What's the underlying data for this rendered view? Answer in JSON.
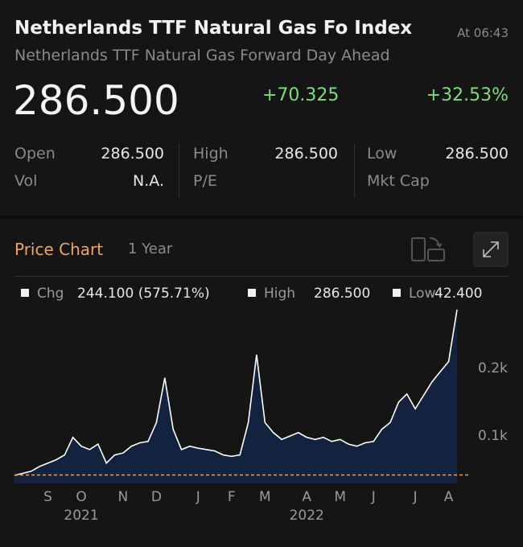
{
  "header": {
    "title": "Netherlands TTF Natural Gas Fo Index",
    "time": "At 06:43",
    "subtitle": "Netherlands TTF Natural Gas Forward Day Ahead",
    "price": "286.500",
    "change": "+70.325",
    "change_pct": "+32.53%"
  },
  "stats": [
    {
      "label": "Open",
      "value": "286.500"
    },
    {
      "label": "High",
      "value": "286.500"
    },
    {
      "label": "Low",
      "value": "286.500"
    },
    {
      "label": "Vol",
      "value": "N.A."
    },
    {
      "label": "P/E"
    },
    {
      "label": "Mkt Cap"
    }
  ],
  "chart_panel": {
    "title": "Price Chart",
    "range": "1 Year"
  },
  "chart_data": {
    "type": "area",
    "legend": [
      {
        "name": "Chg",
        "label": "244.100 (575.71%)"
      },
      {
        "name": "High",
        "value": 286.5,
        "label": "286.500"
      },
      {
        "name": "Low",
        "value": 42.4,
        "label": "42.400"
      }
    ],
    "categories": [
      null,
      null,
      null,
      null,
      "S",
      null,
      null,
      null,
      "O",
      null,
      null,
      null,
      null,
      "N",
      null,
      null,
      null,
      "D",
      null,
      null,
      null,
      null,
      "J",
      null,
      null,
      null,
      "F",
      null,
      null,
      null,
      "M",
      null,
      null,
      null,
      null,
      "A",
      null,
      null,
      null,
      "M",
      null,
      null,
      null,
      "J",
      null,
      null,
      null,
      null,
      "J",
      null,
      null,
      null,
      "A",
      null
    ],
    "year_categories": [
      null,
      null,
      null,
      null,
      null,
      null,
      null,
      null,
      "2021",
      null,
      null,
      null,
      null,
      null,
      null,
      null,
      null,
      null,
      null,
      null,
      null,
      null,
      null,
      null,
      null,
      null,
      null,
      null,
      null,
      null,
      null,
      null,
      null,
      null,
      null,
      "2022",
      null,
      null,
      null,
      null,
      null,
      null,
      null,
      null,
      null,
      null,
      null,
      null,
      null,
      null,
      null,
      null,
      null,
      null
    ],
    "values": [
      42,
      45,
      48,
      55,
      60,
      65,
      72,
      98,
      85,
      80,
      88,
      60,
      72,
      75,
      85,
      90,
      92,
      120,
      186,
      110,
      80,
      85,
      82,
      80,
      78,
      72,
      70,
      72,
      120,
      220,
      120,
      105,
      95,
      100,
      105,
      98,
      95,
      98,
      92,
      95,
      88,
      85,
      90,
      92,
      110,
      120,
      150,
      162,
      140,
      160,
      180,
      195,
      210,
      286.5
    ],
    "color": "#ffffff",
    "fill": "#13223f",
    "low_line_color": "#e8a25a",
    "ylim": [
      30,
      290
    ],
    "yticks": [
      {
        "value": 200,
        "label": "0.2k"
      },
      {
        "value": 100,
        "label": "0.1k"
      }
    ]
  }
}
